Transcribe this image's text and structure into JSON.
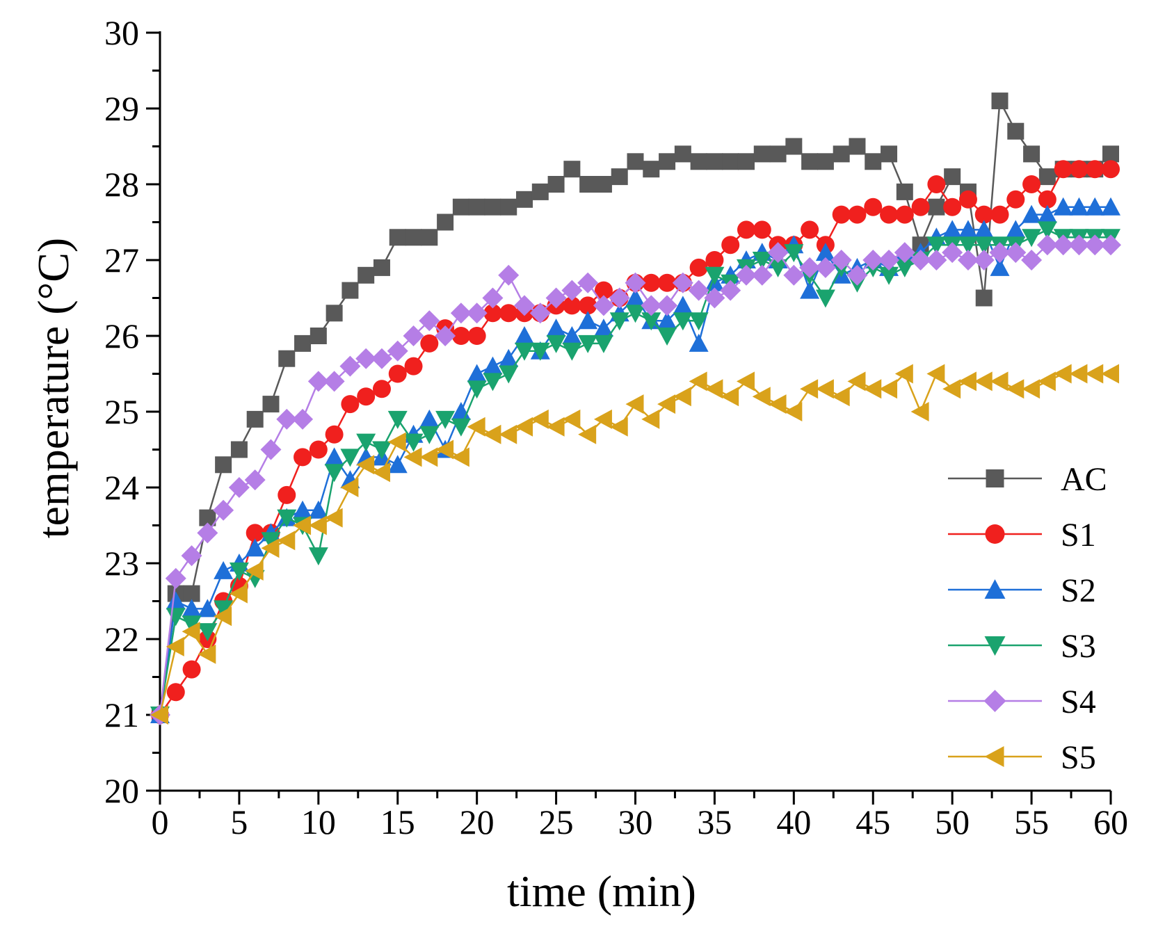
{
  "chart_data": {
    "type": "line",
    "title": "",
    "xlabel": "time (min)",
    "ylabel": "temperature (°C)",
    "xlim": [
      0,
      60
    ],
    "ylim": [
      20,
      30
    ],
    "xticks": [
      0,
      5,
      10,
      15,
      20,
      25,
      30,
      35,
      40,
      45,
      50,
      55,
      60
    ],
    "yticks": [
      20,
      21,
      22,
      23,
      24,
      25,
      26,
      27,
      28,
      29,
      30
    ],
    "xtick_labels": [
      "0",
      "5",
      "10",
      "15",
      "20",
      "25",
      "30",
      "35",
      "40",
      "45",
      "50",
      "55",
      "60"
    ],
    "ytick_labels": [
      "20",
      "21",
      "22",
      "23",
      "24",
      "25",
      "26",
      "27",
      "28",
      "29",
      "30"
    ],
    "grid": false,
    "legend_position": "bottom-right",
    "x": [
      0,
      1,
      2,
      3,
      4,
      5,
      6,
      7,
      8,
      9,
      10,
      11,
      12,
      13,
      14,
      15,
      16,
      17,
      18,
      19,
      20,
      21,
      22,
      23,
      24,
      25,
      26,
      27,
      28,
      29,
      30,
      31,
      32,
      33,
      34,
      35,
      36,
      37,
      38,
      39,
      40,
      41,
      42,
      43,
      44,
      45,
      46,
      47,
      48,
      49,
      50,
      51,
      52,
      53,
      54,
      55,
      56,
      57,
      58,
      59,
      60
    ],
    "series": [
      {
        "name": "AC",
        "color": "#595959",
        "marker": "square",
        "values": [
          21.0,
          22.6,
          22.6,
          23.6,
          24.3,
          24.5,
          24.9,
          25.1,
          25.7,
          25.9,
          26.0,
          26.3,
          26.6,
          26.8,
          26.9,
          27.3,
          27.3,
          27.3,
          27.5,
          27.7,
          27.7,
          27.7,
          27.7,
          27.8,
          27.9,
          28.0,
          28.2,
          28.0,
          28.0,
          28.1,
          28.3,
          28.2,
          28.3,
          28.4,
          28.3,
          28.3,
          28.3,
          28.3,
          28.4,
          28.4,
          28.5,
          28.3,
          28.3,
          28.4,
          28.5,
          28.3,
          28.4,
          27.9,
          27.2,
          27.7,
          28.1,
          27.9,
          26.5,
          29.1,
          28.7,
          28.4,
          28.1,
          28.2,
          28.2,
          28.2,
          28.4
        ]
      },
      {
        "name": "S1",
        "color": "#f0201e",
        "marker": "circle",
        "values": [
          21.0,
          21.3,
          21.6,
          22.0,
          22.5,
          22.7,
          23.4,
          23.4,
          23.9,
          24.4,
          24.5,
          24.7,
          25.1,
          25.2,
          25.3,
          25.5,
          25.6,
          25.9,
          26.1,
          26.0,
          26.0,
          26.3,
          26.3,
          26.3,
          26.3,
          26.4,
          26.4,
          26.4,
          26.6,
          26.5,
          26.7,
          26.7,
          26.7,
          26.7,
          26.9,
          27.0,
          27.2,
          27.4,
          27.4,
          27.2,
          27.2,
          27.4,
          27.2,
          27.6,
          27.6,
          27.7,
          27.6,
          27.6,
          27.7,
          28.0,
          27.7,
          27.8,
          27.6,
          27.6,
          27.8,
          28.0,
          27.8,
          28.2,
          28.2,
          28.2,
          28.2
        ]
      },
      {
        "name": "S2",
        "color": "#1e6fd8",
        "marker": "triangle-up",
        "values": [
          21.0,
          22.5,
          22.4,
          22.4,
          22.9,
          23.0,
          23.2,
          23.4,
          23.6,
          23.7,
          23.7,
          24.4,
          24.1,
          24.4,
          24.4,
          24.3,
          24.7,
          24.9,
          24.5,
          25.0,
          25.5,
          25.6,
          25.7,
          26.0,
          25.8,
          26.1,
          26.0,
          26.2,
          26.1,
          26.3,
          26.5,
          26.2,
          26.2,
          26.4,
          25.9,
          26.7,
          26.8,
          27.0,
          27.1,
          27.0,
          27.2,
          26.6,
          27.1,
          26.8,
          26.9,
          27.0,
          26.9,
          27.1,
          27.1,
          27.3,
          27.4,
          27.4,
          27.4,
          26.9,
          27.4,
          27.6,
          27.6,
          27.7,
          27.7,
          27.7,
          27.7
        ]
      },
      {
        "name": "S3",
        "color": "#1aa36e",
        "marker": "triangle-down",
        "values": [
          21.0,
          22.3,
          22.2,
          22.1,
          22.4,
          22.9,
          22.8,
          23.3,
          23.6,
          23.5,
          23.1,
          24.2,
          24.4,
          24.6,
          24.5,
          24.9,
          24.6,
          24.7,
          24.9,
          24.8,
          25.3,
          25.4,
          25.5,
          25.8,
          25.8,
          25.9,
          25.8,
          25.9,
          25.9,
          26.2,
          26.3,
          26.2,
          26.0,
          26.2,
          26.2,
          26.8,
          26.7,
          26.9,
          27.0,
          26.9,
          27.1,
          26.8,
          26.5,
          26.9,
          26.7,
          26.9,
          26.8,
          26.9,
          27.0,
          27.2,
          27.2,
          27.2,
          27.2,
          27.2,
          27.2,
          27.3,
          27.4,
          27.3,
          27.3,
          27.3,
          27.3
        ]
      },
      {
        "name": "S4",
        "color": "#b57ee6",
        "marker": "diamond",
        "values": [
          21.0,
          22.8,
          23.1,
          23.4,
          23.7,
          24.0,
          24.1,
          24.5,
          24.9,
          24.9,
          25.4,
          25.4,
          25.6,
          25.7,
          25.7,
          25.8,
          26.0,
          26.2,
          26.0,
          26.3,
          26.3,
          26.5,
          26.8,
          26.4,
          26.3,
          26.5,
          26.6,
          26.7,
          26.4,
          26.5,
          26.7,
          26.4,
          26.4,
          26.7,
          26.6,
          26.5,
          26.6,
          26.8,
          26.8,
          27.1,
          26.8,
          26.9,
          26.9,
          27.0,
          26.8,
          27.0,
          27.0,
          27.1,
          27.0,
          27.0,
          27.1,
          27.0,
          27.0,
          27.1,
          27.1,
          27.0,
          27.2,
          27.2,
          27.2,
          27.2,
          27.2
        ]
      },
      {
        "name": "S5",
        "color": "#d9a21b",
        "marker": "triangle-left",
        "values": [
          21.0,
          21.9,
          22.1,
          21.8,
          22.3,
          22.6,
          22.9,
          23.2,
          23.3,
          23.5,
          23.5,
          23.6,
          24.0,
          24.3,
          24.2,
          24.6,
          24.4,
          24.4,
          24.5,
          24.4,
          24.8,
          24.7,
          24.7,
          24.8,
          24.9,
          24.8,
          24.9,
          24.7,
          24.9,
          24.8,
          25.1,
          24.9,
          25.1,
          25.2,
          25.4,
          25.3,
          25.2,
          25.4,
          25.2,
          25.1,
          25.0,
          25.3,
          25.3,
          25.2,
          25.4,
          25.3,
          25.3,
          25.5,
          25.0,
          25.5,
          25.3,
          25.4,
          25.4,
          25.4,
          25.3,
          25.3,
          25.4,
          25.5,
          25.5,
          25.5,
          25.5
        ]
      }
    ]
  }
}
